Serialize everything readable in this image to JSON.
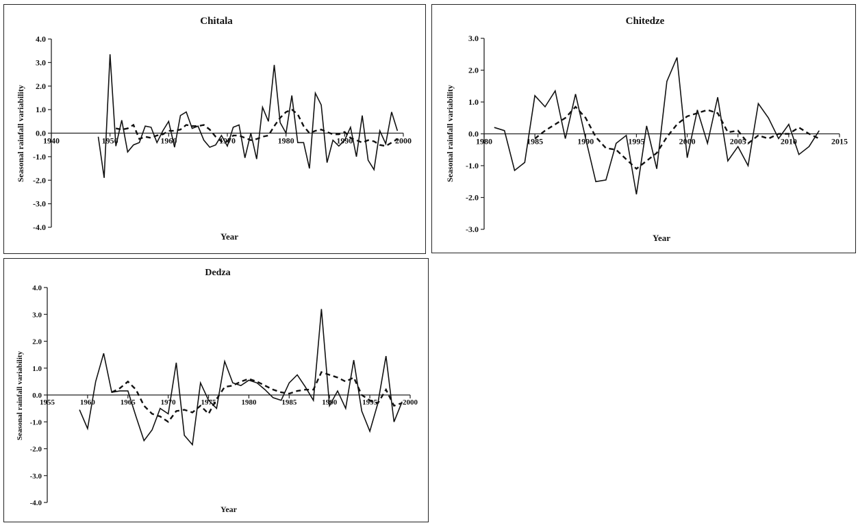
{
  "chart_data": [
    {
      "type": "line",
      "title": "Chitala",
      "xlabel": "Year",
      "ylabel": "Seasonal rainfall  variability",
      "xlim": [
        1940,
        2000
      ],
      "ylim": [
        -4.0,
        4.0
      ],
      "x_ticks": [
        "1940",
        "1950",
        "1960",
        "1970",
        "1980",
        "1990",
        "2000"
      ],
      "y_ticks": [
        "4.0",
        "3.0",
        "2.0",
        "1.0",
        "0.0",
        "-1.0",
        "-2.0",
        "-3.0",
        "-4.0"
      ],
      "grid": false,
      "series": [
        {
          "style": "solid",
          "x": [
            1948,
            1949,
            1950,
            1951,
            1952,
            1953,
            1954,
            1955,
            1956,
            1957,
            1958,
            1959,
            1960,
            1961,
            1962,
            1963,
            1964,
            1965,
            1966,
            1967,
            1968,
            1969,
            1970,
            1971,
            1972,
            1973,
            1974,
            1975,
            1976,
            1977,
            1978,
            1979,
            1980,
            1981,
            1982,
            1983,
            1984,
            1985,
            1986,
            1987,
            1988,
            1989,
            1990,
            1991,
            1992,
            1993,
            1994,
            1995,
            1996,
            1997,
            1998,
            1999
          ],
          "y": [
            -0.15,
            -1.9,
            3.35,
            -0.55,
            0.55,
            -0.8,
            -0.5,
            -0.4,
            0.3,
            0.25,
            -0.4,
            0.1,
            0.5,
            -0.6,
            0.75,
            0.9,
            0.2,
            0.3,
            -0.3,
            -0.6,
            -0.5,
            -0.1,
            -0.55,
            0.25,
            0.35,
            -1.05,
            0.0,
            -1.1,
            1.1,
            0.5,
            2.9,
            0.45,
            0.0,
            1.6,
            -0.4,
            -0.4,
            -1.5,
            1.7,
            1.2,
            -1.25,
            -0.3,
            -0.55,
            -0.3,
            0.25,
            -1.0,
            0.75,
            -1.15,
            -1.55,
            0.1,
            -0.45,
            0.9,
            0.1
          ]
        },
        {
          "style": "dashed",
          "x": [
            1951,
            1952,
            1953,
            1954,
            1955,
            1956,
            1957,
            1958,
            1959,
            1960,
            1961,
            1962,
            1963,
            1964,
            1965,
            1966,
            1967,
            1968,
            1969,
            1970,
            1971,
            1972,
            1973,
            1974,
            1975,
            1976,
            1977,
            1978,
            1979,
            1980,
            1981,
            1982,
            1983,
            1984,
            1985,
            1986,
            1987,
            1988,
            1989,
            1990,
            1991,
            1992,
            1993,
            1994,
            1995,
            1996,
            1997,
            1998,
            1999
          ],
          "y": [
            0.2,
            0.15,
            0.2,
            0.35,
            -0.25,
            -0.15,
            -0.2,
            -0.1,
            -0.05,
            0.1,
            0.1,
            0.15,
            0.35,
            0.3,
            0.3,
            0.35,
            0.15,
            -0.15,
            -0.35,
            -0.35,
            -0.1,
            -0.1,
            -0.2,
            -0.3,
            -0.25,
            -0.15,
            -0.1,
            0.3,
            0.65,
            0.9,
            1.0,
            0.8,
            0.3,
            0.0,
            0.1,
            0.15,
            0.05,
            -0.05,
            -0.05,
            0.05,
            -0.2,
            -0.3,
            -0.4,
            -0.3,
            -0.35,
            -0.5,
            -0.55,
            -0.4,
            -0.25
          ]
        }
      ]
    },
    {
      "type": "line",
      "title": "Chitedze",
      "xlabel": "Year",
      "ylabel": "Seasonal rainfall  variability",
      "xlim": [
        1980,
        2015
      ],
      "ylim": [
        -3.0,
        3.0
      ],
      "x_ticks": [
        "1980",
        "1985",
        "1990",
        "1995",
        "2000",
        "2005",
        "2010",
        "2015"
      ],
      "y_ticks": [
        "3.0",
        "2.0",
        "1.0",
        "0.0",
        "-1.0",
        "-2.0",
        "-3.0"
      ],
      "grid": false,
      "series": [
        {
          "style": "solid",
          "x": [
            1981,
            1982,
            1983,
            1984,
            1985,
            1986,
            1987,
            1988,
            1989,
            1990,
            1991,
            1992,
            1993,
            1994,
            1995,
            1996,
            1997,
            1998,
            1999,
            2000,
            2001,
            2002,
            2003,
            2004,
            2005,
            2006,
            2007,
            2008,
            2009,
            2010,
            2011,
            2012,
            2013
          ],
          "y": [
            0.2,
            0.1,
            -1.15,
            -0.9,
            1.2,
            0.85,
            1.35,
            -0.15,
            1.25,
            -0.15,
            -1.5,
            -1.45,
            -0.3,
            -0.05,
            -1.9,
            0.25,
            -1.1,
            1.65,
            2.4,
            -0.75,
            0.75,
            -0.3,
            1.15,
            -0.85,
            -0.4,
            -1.0,
            0.95,
            0.5,
            -0.15,
            0.3,
            -0.65,
            -0.4,
            0.1
          ]
        },
        {
          "style": "dashed",
          "x": [
            1985,
            1986,
            1987,
            1988,
            1989,
            1990,
            1991,
            1992,
            1993,
            1994,
            1995,
            1996,
            1997,
            1998,
            1999,
            2000,
            2001,
            2002,
            2003,
            2004,
            2005,
            2006,
            2007,
            2008,
            2009,
            2010,
            2011,
            2012,
            2013
          ],
          "y": [
            -0.15,
            0.1,
            0.3,
            0.5,
            0.85,
            0.5,
            -0.1,
            -0.45,
            -0.5,
            -0.8,
            -1.1,
            -0.85,
            -0.6,
            -0.1,
            0.3,
            0.55,
            0.65,
            0.75,
            0.65,
            0.05,
            0.1,
            -0.3,
            -0.05,
            -0.15,
            0.0,
            0.0,
            0.2,
            0.0,
            -0.15
          ]
        }
      ]
    },
    {
      "type": "line",
      "title": "Dedza",
      "xlabel": "Year",
      "ylabel": "Seasonal rainfall  variability",
      "xlim": [
        1955,
        2000
      ],
      "ylim": [
        -4.0,
        4.0
      ],
      "x_ticks": [
        "1955",
        "1960",
        "1965",
        "1970",
        "1975",
        "1980",
        "1985",
        "1990",
        "1995",
        "2000"
      ],
      "y_ticks": [
        "4.0",
        "3.0",
        "2.0",
        "1.0",
        "0.0",
        "-1.0",
        "-2.0",
        "-3.0",
        "-4.0"
      ],
      "grid": false,
      "series": [
        {
          "style": "solid",
          "x": [
            1959,
            1960,
            1961,
            1962,
            1963,
            1964,
            1965,
            1966,
            1967,
            1968,
            1969,
            1970,
            1971,
            1972,
            1973,
            1974,
            1975,
            1976,
            1977,
            1978,
            1979,
            1980,
            1981,
            1982,
            1983,
            1984,
            1985,
            1986,
            1987,
            1988,
            1989,
            1990,
            1991,
            1992,
            1993,
            1994,
            1995,
            1996,
            1997,
            1998,
            1999
          ],
          "y": [
            -0.55,
            -1.25,
            0.5,
            1.55,
            0.1,
            0.15,
            0.15,
            -0.8,
            -1.7,
            -1.3,
            -0.5,
            -0.7,
            1.2,
            -1.5,
            -1.85,
            0.45,
            -0.2,
            -0.5,
            1.25,
            0.45,
            0.35,
            0.55,
            0.45,
            0.2,
            -0.1,
            -0.2,
            0.45,
            0.75,
            0.3,
            -0.2,
            3.2,
            -0.4,
            0.15,
            -0.5,
            1.3,
            -0.6,
            -1.35,
            -0.3,
            1.45,
            -1.0,
            -0.25
          ]
        },
        {
          "style": "dashed",
          "x": [
            1963,
            1964,
            1965,
            1966,
            1967,
            1968,
            1969,
            1970,
            1971,
            1972,
            1973,
            1974,
            1975,
            1976,
            1977,
            1978,
            1979,
            1980,
            1981,
            1982,
            1983,
            1984,
            1985,
            1986,
            1987,
            1988,
            1989,
            1990,
            1991,
            1992,
            1993,
            1994,
            1995,
            1996,
            1997,
            1998,
            1999
          ],
          "y": [
            0.1,
            0.25,
            0.5,
            0.2,
            -0.4,
            -0.7,
            -0.8,
            -1.0,
            -0.6,
            -0.55,
            -0.65,
            -0.4,
            -0.7,
            -0.15,
            0.3,
            0.35,
            0.5,
            0.6,
            0.5,
            0.35,
            0.2,
            0.1,
            0.05,
            0.15,
            0.2,
            0.2,
            0.85,
            0.75,
            0.65,
            0.5,
            0.65,
            0.0,
            -0.2,
            -0.3,
            0.2,
            -0.4,
            -0.3
          ]
        }
      ]
    }
  ]
}
